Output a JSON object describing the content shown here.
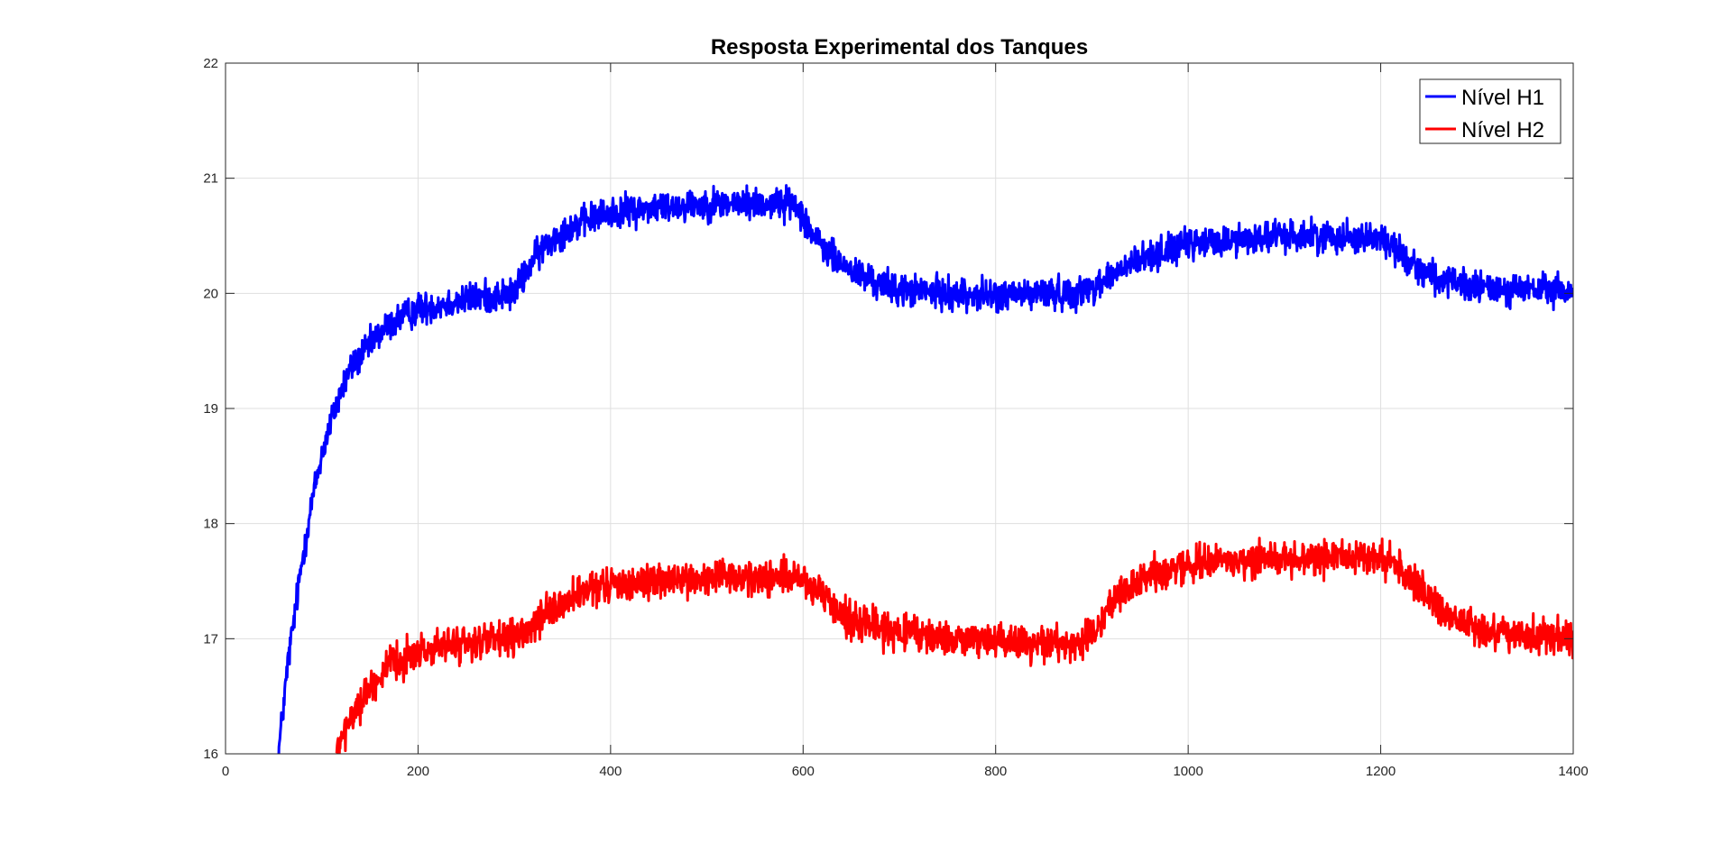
{
  "chart_data": {
    "type": "line",
    "title": "Resposta Experimental dos Tanques",
    "xlabel": "",
    "ylabel": "",
    "xlim": [
      0,
      1400
    ],
    "ylim": [
      16,
      22
    ],
    "x_ticks": [
      0,
      200,
      400,
      600,
      800,
      1000,
      1200,
      1400
    ],
    "y_ticks": [
      16,
      17,
      18,
      19,
      20,
      21,
      22
    ],
    "x_tick_labels": [
      "0",
      "200",
      "400",
      "600",
      "800",
      "1000",
      "1200",
      "1400"
    ],
    "y_tick_labels": [
      "16",
      "17",
      "18",
      "19",
      "20",
      "21",
      "22"
    ],
    "grid": true,
    "legend_position": "top-right",
    "series": [
      {
        "name": "Nível H1",
        "color": "#0000ff",
        "noise_amplitude": 0.12,
        "x": [
          55,
          60,
          65,
          70,
          75,
          80,
          90,
          100,
          110,
          120,
          130,
          140,
          150,
          160,
          170,
          180,
          190,
          200,
          220,
          240,
          260,
          280,
          300,
          310,
          320,
          340,
          360,
          380,
          400,
          450,
          500,
          550,
          590,
          600,
          610,
          620,
          640,
          660,
          680,
          700,
          750,
          800,
          850,
          880,
          900,
          920,
          940,
          960,
          980,
          1000,
          1050,
          1100,
          1150,
          1200,
          1210,
          1220,
          1240,
          1260,
          1280,
          1300,
          1350,
          1400
        ],
        "y": [
          16.0,
          16.4,
          16.8,
          17.1,
          17.4,
          17.7,
          18.2,
          18.6,
          18.9,
          19.15,
          19.35,
          19.45,
          19.55,
          19.65,
          19.72,
          19.78,
          19.82,
          19.86,
          19.9,
          19.93,
          19.96,
          19.98,
          20.0,
          20.15,
          20.3,
          20.48,
          20.58,
          20.65,
          20.7,
          20.75,
          20.78,
          20.78,
          20.78,
          20.7,
          20.5,
          20.4,
          20.25,
          20.15,
          20.08,
          20.03,
          20.0,
          19.98,
          20.0,
          20.0,
          20.05,
          20.15,
          20.25,
          20.32,
          20.38,
          20.42,
          20.47,
          20.5,
          20.5,
          20.48,
          20.42,
          20.35,
          20.22,
          20.12,
          20.07,
          20.05,
          20.03,
          20.02
        ]
      },
      {
        "name": "Nível H2",
        "color": "#ff0000",
        "noise_amplitude": 0.13,
        "x": [
          115,
          120,
          130,
          140,
          150,
          160,
          170,
          180,
          190,
          200,
          220,
          240,
          260,
          280,
          300,
          320,
          340,
          360,
          380,
          400,
          450,
          500,
          550,
          590,
          600,
          620,
          640,
          660,
          680,
          700,
          750,
          800,
          850,
          880,
          900,
          910,
          920,
          940,
          960,
          980,
          1000,
          1050,
          1100,
          1150,
          1200,
          1210,
          1220,
          1240,
          1260,
          1280,
          1300,
          1350,
          1400
        ],
        "y": [
          16.0,
          16.1,
          16.3,
          16.45,
          16.58,
          16.68,
          16.75,
          16.8,
          16.85,
          16.88,
          16.92,
          16.95,
          16.97,
          16.98,
          17.0,
          17.1,
          17.25,
          17.35,
          17.42,
          17.47,
          17.5,
          17.52,
          17.53,
          17.53,
          17.5,
          17.35,
          17.22,
          17.15,
          17.1,
          17.05,
          17.0,
          16.98,
          16.97,
          16.97,
          17.0,
          17.15,
          17.3,
          17.45,
          17.55,
          17.6,
          17.65,
          17.68,
          17.7,
          17.7,
          17.7,
          17.68,
          17.6,
          17.45,
          17.28,
          17.15,
          17.08,
          17.03,
          17.0
        ]
      }
    ]
  }
}
